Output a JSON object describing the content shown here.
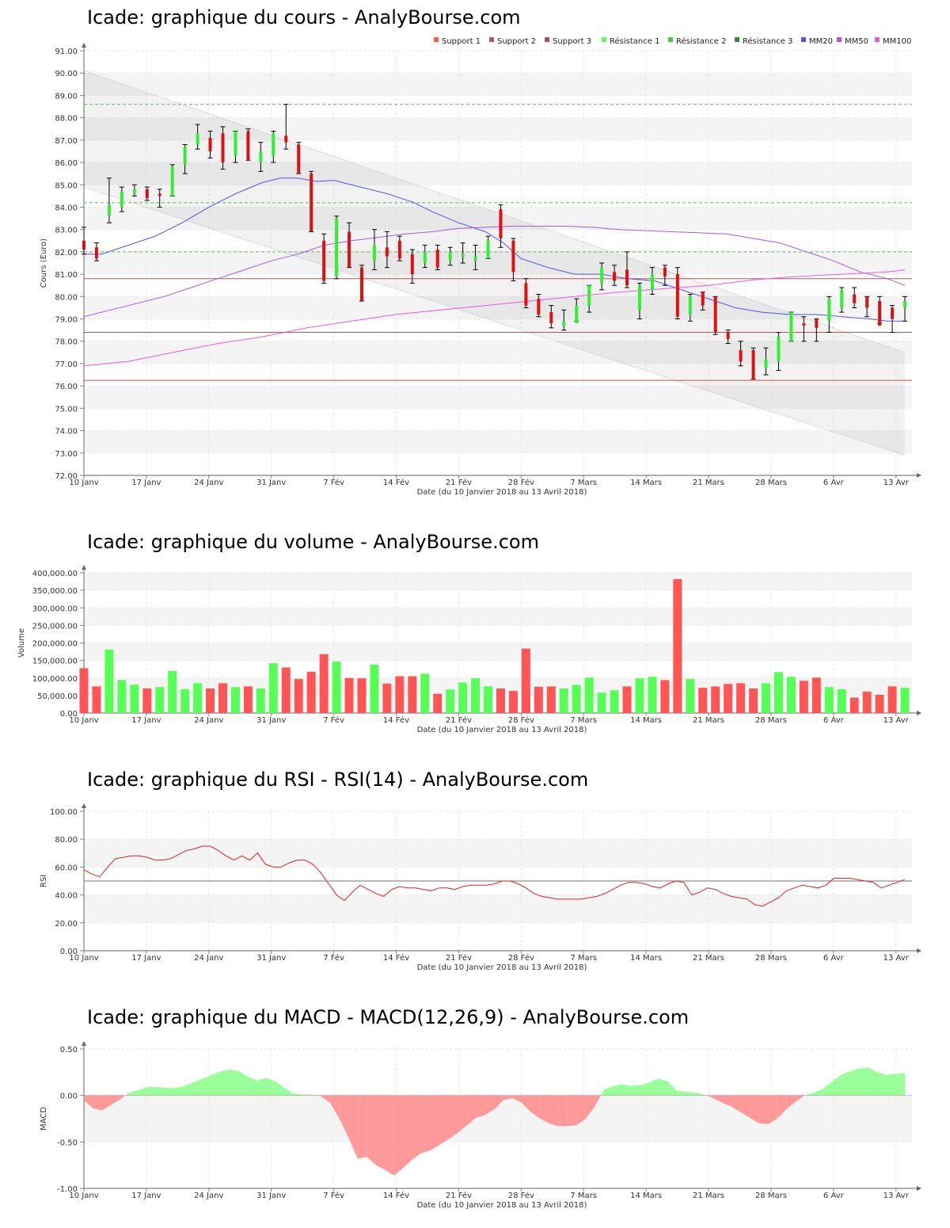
{
  "colors": {
    "up": "#33ee33",
    "down": "#dd1111",
    "vol_up": "#55ff55",
    "vol_down": "#ff5555",
    "support": "#bb5555",
    "resistance": "#55bb55",
    "mm20": "#5555ee",
    "mm50": "#aa55ee",
    "mm100": "#ee55ee",
    "rsi": "#dd2222",
    "macd_pos": "#99ff99",
    "macd_neg": "#ff9999",
    "band": "#f4f4f4"
  },
  "date_label": "Date (du 10 Janvier 2018 au 13 Avril 2018)",
  "x_ticks": [
    "10 Janv",
    "17 Janv",
    "24 Janv",
    "31 Janv",
    "7 Fév",
    "14 Fév",
    "21 Fév",
    "28 Fév",
    "7 Mars",
    "14 Mars",
    "21 Mars",
    "28 Mars",
    "6 Avr",
    "13 Avr"
  ],
  "chart_data": [
    {
      "id": "price",
      "type": "candlestick",
      "title": "Icade: graphique du cours - AnalyBourse.com",
      "ylabel": "Cours (Euro)",
      "ylim": [
        72,
        91
      ],
      "yticks": [
        "72.00",
        "73.00",
        "74.00",
        "75.00",
        "76.00",
        "77.00",
        "78.00",
        "79.00",
        "80.00",
        "81.00",
        "82.00",
        "83.00",
        "84.00",
        "85.00",
        "86.00",
        "87.00",
        "88.00",
        "89.00",
        "90.00",
        "91.00"
      ],
      "legend": [
        "Support 1",
        "Support 2",
        "Support 3",
        "Résistance 1",
        "Résistance 2",
        "Résistance 3",
        "MM20",
        "MM50",
        "MM100"
      ],
      "legend_position": "top-right",
      "support_levels": [
        80.8,
        78.4,
        76.25
      ],
      "resistance_levels": [
        82.0,
        84.2,
        88.6
      ],
      "trend_channel": {
        "upper": [
          90.1,
          77.5
        ],
        "lower": [
          84.9,
          72.9
        ]
      },
      "ohlc": [
        [
          82.5,
          83.1,
          81.9,
          82.1
        ],
        [
          82.2,
          82.4,
          81.6,
          81.7
        ],
        [
          83.6,
          85.3,
          83.3,
          84.1
        ],
        [
          84.0,
          84.9,
          83.8,
          84.7
        ],
        [
          84.6,
          85.0,
          84.5,
          84.8
        ],
        [
          84.8,
          84.9,
          84.3,
          84.4
        ],
        [
          84.6,
          84.8,
          84.0,
          84.5
        ],
        [
          84.5,
          85.9,
          84.5,
          85.8
        ],
        [
          85.9,
          86.8,
          85.5,
          86.7
        ],
        [
          86.8,
          87.7,
          86.6,
          87.3
        ],
        [
          87.1,
          87.4,
          86.2,
          86.5
        ],
        [
          87.3,
          87.6,
          85.7,
          86.0
        ],
        [
          86.3,
          87.4,
          86.0,
          87.4
        ],
        [
          87.4,
          87.5,
          86.1,
          86.1
        ],
        [
          86.0,
          86.9,
          85.6,
          86.5
        ],
        [
          86.3,
          87.4,
          86.0,
          87.3
        ],
        [
          87.2,
          88.6,
          86.6,
          86.9
        ],
        [
          86.8,
          86.9,
          85.5,
          85.5
        ],
        [
          85.5,
          85.6,
          82.9,
          82.9
        ],
        [
          82.5,
          82.8,
          80.6,
          80.7
        ],
        [
          80.9,
          83.6,
          80.8,
          83.5
        ],
        [
          82.9,
          83.3,
          81.3,
          81.3
        ],
        [
          81.3,
          81.4,
          79.8,
          79.8
        ],
        [
          81.6,
          83.0,
          81.2,
          82.3
        ],
        [
          82.2,
          82.9,
          81.3,
          81.8
        ],
        [
          82.5,
          82.7,
          81.6,
          81.7
        ],
        [
          81.9,
          82.1,
          80.6,
          81.0
        ],
        [
          81.5,
          82.3,
          81.3,
          82.0
        ],
        [
          82.1,
          82.3,
          81.2,
          81.3
        ],
        [
          81.6,
          82.2,
          81.4,
          82.0
        ],
        [
          81.8,
          82.4,
          81.5,
          81.9
        ],
        [
          81.6,
          82.3,
          81.2,
          81.8
        ],
        [
          81.7,
          82.7,
          81.7,
          82.5
        ],
        [
          83.9,
          84.1,
          82.2,
          82.6
        ],
        [
          82.5,
          82.6,
          80.7,
          81.1
        ],
        [
          80.6,
          80.8,
          79.5,
          79.6
        ],
        [
          79.9,
          80.1,
          79.1,
          79.2
        ],
        [
          79.3,
          79.6,
          78.6,
          78.8
        ],
        [
          78.7,
          79.4,
          78.5,
          78.9
        ],
        [
          78.8,
          79.9,
          78.9,
          79.6
        ],
        [
          79.6,
          80.5,
          79.3,
          80.5
        ],
        [
          80.6,
          81.5,
          80.3,
          81.3
        ],
        [
          81.1,
          81.4,
          80.5,
          80.7
        ],
        [
          81.2,
          82.0,
          80.4,
          80.5
        ],
        [
          79.4,
          80.6,
          79.0,
          80.5
        ],
        [
          80.3,
          81.3,
          80.1,
          81.0
        ],
        [
          81.3,
          81.4,
          80.5,
          80.9
        ],
        [
          81.0,
          81.3,
          79.0,
          79.1
        ],
        [
          79.2,
          80.1,
          78.9,
          80.0
        ],
        [
          80.2,
          80.2,
          79.4,
          79.6
        ],
        [
          80.0,
          80.0,
          78.3,
          78.4
        ],
        [
          78.4,
          78.5,
          77.9,
          78.1
        ],
        [
          77.6,
          78.0,
          76.9,
          77.1
        ],
        [
          77.6,
          77.7,
          76.3,
          76.3
        ],
        [
          76.8,
          77.7,
          76.5,
          77.2
        ],
        [
          77.1,
          78.4,
          76.7,
          78.2
        ],
        [
          78.0,
          79.3,
          78.0,
          79.3
        ],
        [
          78.8,
          79.1,
          78.0,
          78.7
        ],
        [
          79.0,
          79.0,
          78.0,
          78.6
        ],
        [
          78.9,
          80.0,
          78.4,
          79.9
        ],
        [
          79.5,
          80.4,
          79.3,
          80.3
        ],
        [
          80.1,
          80.4,
          79.5,
          79.7
        ],
        [
          80.0,
          80.0,
          79.1,
          79.5
        ],
        [
          79.8,
          80.0,
          78.8,
          78.7
        ],
        [
          79.5,
          79.6,
          78.4,
          79.0
        ],
        [
          79.5,
          80.0,
          78.9,
          79.8
        ]
      ],
      "mm20": [
        [
          0,
          81.9
        ],
        [
          2,
          81.9
        ],
        [
          5,
          82.3
        ],
        [
          8,
          82.7
        ],
        [
          11,
          83.3
        ],
        [
          14,
          84.0
        ],
        [
          17,
          84.6
        ],
        [
          20,
          85.1
        ],
        [
          22,
          85.3
        ],
        [
          24,
          85.3
        ],
        [
          26,
          85.15
        ],
        [
          28,
          85.2
        ],
        [
          31,
          84.9
        ],
        [
          34,
          84.6
        ],
        [
          37,
          84.2
        ],
        [
          39,
          83.8
        ],
        [
          42,
          83.3
        ],
        [
          45,
          82.9
        ],
        [
          47,
          82.4
        ],
        [
          49,
          81.7
        ],
        [
          52,
          81.3
        ],
        [
          55,
          81.0
        ],
        [
          58,
          81.0
        ],
        [
          61,
          80.8
        ],
        [
          64,
          80.7
        ],
        [
          67,
          80.3
        ],
        [
          70,
          79.9
        ],
        [
          73,
          79.5
        ],
        [
          76,
          79.3
        ],
        [
          79,
          79.2
        ],
        [
          82,
          79.2
        ],
        [
          85,
          79.1
        ],
        [
          88,
          79.0
        ],
        [
          90,
          78.9
        ],
        [
          92,
          78.9
        ]
      ],
      "mm50": [
        [
          0,
          79.1
        ],
        [
          3,
          79.4
        ],
        [
          6,
          79.7
        ],
        [
          9,
          80.0
        ],
        [
          12,
          80.4
        ],
        [
          15,
          80.8
        ],
        [
          18,
          81.2
        ],
        [
          21,
          81.6
        ],
        [
          24,
          81.9
        ],
        [
          27,
          82.3
        ],
        [
          30,
          82.5
        ],
        [
          33,
          82.65
        ],
        [
          36,
          82.8
        ],
        [
          39,
          82.9
        ],
        [
          42,
          83.05
        ],
        [
          45,
          83.1
        ],
        [
          48,
          83.15
        ],
        [
          51,
          83.15
        ],
        [
          54,
          83.15
        ],
        [
          57,
          83.1
        ],
        [
          60,
          83.0
        ],
        [
          63,
          82.95
        ],
        [
          66,
          82.9
        ],
        [
          69,
          82.85
        ],
        [
          72,
          82.8
        ],
        [
          75,
          82.6
        ],
        [
          78,
          82.4
        ],
        [
          81,
          82.0
        ],
        [
          84,
          81.6
        ],
        [
          87,
          81.1
        ],
        [
          90,
          80.8
        ],
        [
          92,
          80.5
        ]
      ],
      "mm100": [
        [
          0,
          76.9
        ],
        [
          5,
          77.1
        ],
        [
          10,
          77.5
        ],
        [
          15,
          77.9
        ],
        [
          20,
          78.2
        ],
        [
          25,
          78.6
        ],
        [
          30,
          78.9
        ],
        [
          35,
          79.2
        ],
        [
          40,
          79.4
        ],
        [
          45,
          79.6
        ],
        [
          50,
          79.8
        ],
        [
          55,
          80.0
        ],
        [
          60,
          80.2
        ],
        [
          65,
          80.35
        ],
        [
          70,
          80.5
        ],
        [
          75,
          80.75
        ],
        [
          80,
          80.9
        ],
        [
          85,
          81.0
        ],
        [
          90,
          81.1
        ],
        [
          92,
          81.2
        ]
      ]
    },
    {
      "id": "volume",
      "type": "bar",
      "title": "Icade: graphique du volume - AnalyBourse.com",
      "ylabel": "Volume",
      "ylim": [
        0,
        400000
      ],
      "yticks": [
        "0.00",
        "50,000.00",
        "100,000.00",
        "150,000.00",
        "200,000.00",
        "250,000.00",
        "300,000.00",
        "350,000.00",
        "400,000.00"
      ],
      "values": [
        128000,
        76000,
        181000,
        94000,
        81000,
        70000,
        74000,
        120000,
        68000,
        85000,
        70000,
        85000,
        74000,
        76000,
        70000,
        142000,
        130000,
        97000,
        118000,
        168000,
        147000,
        100000,
        99000,
        138000,
        84000,
        105000,
        105000,
        112000,
        55000,
        67000,
        87000,
        99000,
        76000,
        70000,
        63000,
        184000,
        75000,
        76000,
        70000,
        80000,
        101000,
        58000,
        65000,
        76000,
        99000,
        103000,
        94000,
        382000,
        97000,
        72000,
        76000,
        83000,
        85000,
        70000,
        85000,
        117000,
        103000,
        92000,
        101000,
        74000,
        68000,
        44000,
        61000,
        52000,
        76000,
        72000
      ],
      "direction": [
        "d",
        "d",
        "u",
        "u",
        "u",
        "d",
        "u",
        "u",
        "u",
        "u",
        "d",
        "d",
        "u",
        "d",
        "u",
        "u",
        "d",
        "d",
        "d",
        "d",
        "u",
        "d",
        "d",
        "u",
        "d",
        "d",
        "d",
        "u",
        "d",
        "u",
        "u",
        "u",
        "u",
        "d",
        "d",
        "d",
        "d",
        "d",
        "u",
        "u",
        "u",
        "u",
        "u",
        "d",
        "u",
        "u",
        "d",
        "d",
        "u",
        "d",
        "d",
        "d",
        "d",
        "d",
        "u",
        "u",
        "u",
        "d",
        "d",
        "u",
        "u",
        "d",
        "d",
        "d",
        "d",
        "u"
      ]
    },
    {
      "id": "rsi",
      "type": "line",
      "title": "Icade: graphique du RSI - RSI(14) - AnalyBourse.com",
      "ylabel": "RSI",
      "ylim": [
        0,
        100
      ],
      "yticks": [
        "0.00",
        "20.00",
        "40.00",
        "60.00",
        "80.00",
        "100.00"
      ],
      "reference_line": 50,
      "values": [
        58,
        55,
        53,
        60,
        66,
        67,
        68,
        68,
        67,
        65,
        65,
        66,
        69,
        72,
        73,
        75,
        75,
        72,
        68,
        65,
        68,
        65,
        70,
        62,
        60,
        60,
        63,
        65,
        65,
        62,
        56,
        48,
        40,
        36,
        42,
        47,
        44,
        41,
        39,
        44,
        46,
        45,
        45,
        44,
        43,
        45,
        45,
        44,
        46,
        47,
        47,
        47,
        48,
        50,
        50,
        48,
        45,
        41,
        39,
        38,
        37,
        37,
        37,
        37,
        38,
        39,
        41,
        44,
        47,
        49,
        49,
        48,
        46,
        45,
        48,
        50,
        49,
        40,
        42,
        45,
        44,
        41,
        39,
        38,
        37,
        33,
        32,
        35,
        38,
        43,
        45,
        47,
        46,
        45,
        47,
        52,
        52,
        52,
        51,
        50,
        49,
        45,
        47,
        49,
        51
      ]
    },
    {
      "id": "macd",
      "type": "area",
      "title": "Icade: graphique du MACD - MACD(12,26,9) - AnalyBourse.com",
      "ylabel": "MACD",
      "ylim": [
        -1.0,
        0.5
      ],
      "yticks": [
        "-1.00",
        "-0.50",
        "0.00",
        "0.50"
      ],
      "values": [
        -0.05,
        -0.14,
        -0.16,
        -0.1,
        -0.04,
        0.03,
        0.06,
        0.09,
        0.09,
        0.08,
        0.08,
        0.1,
        0.14,
        0.18,
        0.22,
        0.26,
        0.28,
        0.26,
        0.2,
        0.16,
        0.19,
        0.15,
        0.08,
        0.02,
        0.01,
        0.01,
        -0.01,
        -0.08,
        -0.25,
        -0.45,
        -0.68,
        -0.66,
        -0.75,
        -0.8,
        -0.86,
        -0.78,
        -0.69,
        -0.62,
        -0.59,
        -0.53,
        -0.47,
        -0.4,
        -0.32,
        -0.24,
        -0.21,
        -0.15,
        -0.05,
        -0.03,
        -0.08,
        -0.18,
        -0.25,
        -0.3,
        -0.33,
        -0.33,
        -0.32,
        -0.25,
        -0.12,
        0.06,
        0.1,
        0.12,
        0.1,
        0.11,
        0.14,
        0.18,
        0.15,
        0.05,
        0.04,
        0.03,
        0.01,
        -0.03,
        -0.08,
        -0.12,
        -0.18,
        -0.24,
        -0.3,
        -0.31,
        -0.25,
        -0.15,
        -0.07,
        0.0,
        0.03,
        0.07,
        0.15,
        0.22,
        0.26,
        0.29,
        0.3,
        0.25,
        0.22,
        0.23,
        0.24
      ]
    }
  ]
}
